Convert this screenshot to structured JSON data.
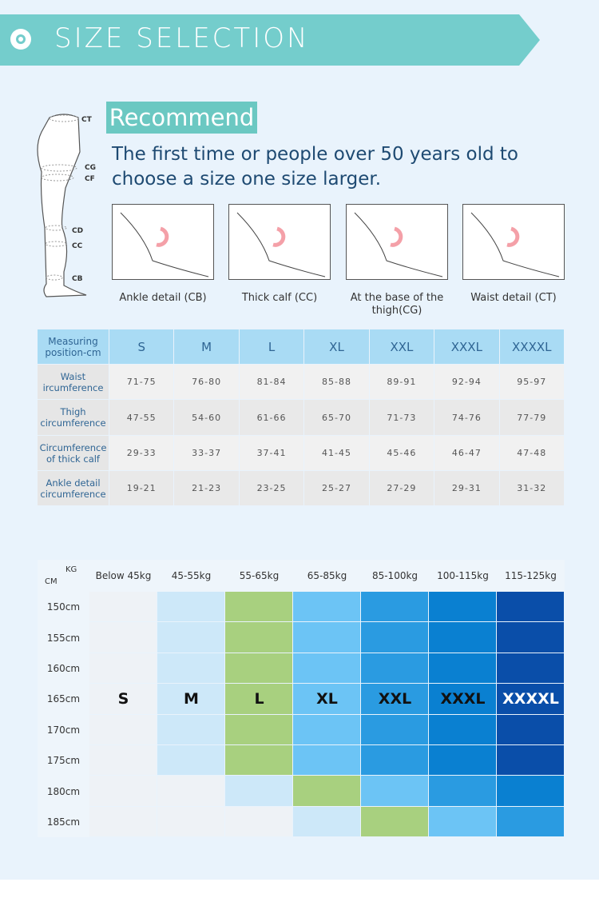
{
  "header": {
    "title": "SIZE SELECTION"
  },
  "recommend": {
    "label": "Recommend",
    "text": "The first time or people over 50 years old to choose a size one size larger."
  },
  "leg_labels": [
    "CT",
    "CG",
    "CF",
    "CD",
    "CC",
    "CB"
  ],
  "photos": [
    "Ankle detail (CB)",
    "Thick calf (CC)",
    "At the base of the thigh(CG)",
    "Waist detail (CT)"
  ],
  "table": {
    "header": [
      "Measuring position-cm",
      "S",
      "M",
      "L",
      "XL",
      "XXL",
      "XXXL",
      "XXXXL"
    ],
    "rows": [
      [
        "Waist ircumference",
        "71-75",
        "76-80",
        "81-84",
        "85-88",
        "89-91",
        "92-94",
        "95-97"
      ],
      [
        "Thigh circumference",
        "47-55",
        "54-60",
        "61-66",
        "65-70",
        "71-73",
        "74-76",
        "77-79"
      ],
      [
        "Circumference of thick calf",
        "29-33",
        "33-37",
        "37-41",
        "41-45",
        "45-46",
        "46-47",
        "47-48"
      ],
      [
        "Ankle detail circumference",
        "19-21",
        "21-23",
        "23-25",
        "25-27",
        "27-29",
        "29-31",
        "31-32"
      ]
    ]
  },
  "size_chart": {
    "corner": {
      "kg": "KG",
      "cm": "CM"
    },
    "weights": [
      "Below 45kg",
      "45-55kg",
      "55-65kg",
      "65-85kg",
      "85-100kg",
      "100-115kg",
      "115-125kg"
    ],
    "heights": [
      "150cm",
      "155cm",
      "160cm",
      "165cm",
      "170cm",
      "175cm",
      "180cm",
      "185cm"
    ],
    "sizes": [
      "S",
      "M",
      "L",
      "XL",
      "XXL",
      "XXXL",
      "XXXXL"
    ]
  }
}
